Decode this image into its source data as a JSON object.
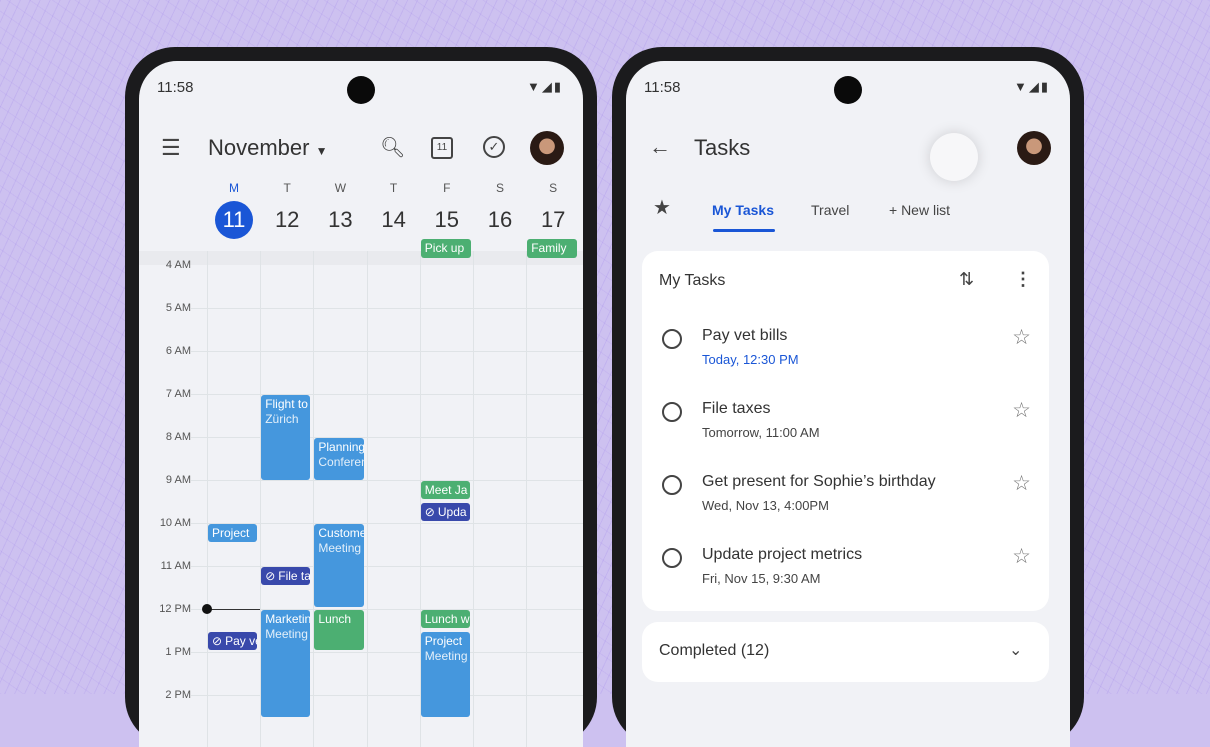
{
  "calendar": {
    "status_time": "11:58",
    "status_icons": "▼◢▮",
    "month": "November",
    "days": [
      {
        "dow": "M",
        "num": "11",
        "today": true
      },
      {
        "dow": "T",
        "num": "12"
      },
      {
        "dow": "W",
        "num": "13"
      },
      {
        "dow": "T",
        "num": "14"
      },
      {
        "dow": "F",
        "num": "15"
      },
      {
        "dow": "S",
        "num": "16"
      },
      {
        "dow": "S",
        "num": "17"
      }
    ],
    "hours": [
      "4 AM",
      "5 AM",
      "6 AM",
      "7 AM",
      "8 AM",
      "9 AM",
      "10 AM",
      "11 AM",
      "12 PM",
      "1 PM",
      "2 PM"
    ],
    "today_icon_label": "11",
    "current_time": 12.0,
    "all_day": [
      {
        "day": 4,
        "title": "Pick up"
      },
      {
        "day": 6,
        "title": "Family"
      }
    ],
    "events": [
      {
        "day": 1,
        "start": 7,
        "end": 9,
        "title": "Flight to",
        "subtitle": "Zürich",
        "kind": "event"
      },
      {
        "day": 2,
        "start": 8,
        "end": 9,
        "title": "Planning",
        "subtitle": "Conference",
        "kind": "event"
      },
      {
        "day": 4,
        "start": 9,
        "end": 9.45,
        "title": "Meet Ja",
        "kind": "green"
      },
      {
        "day": 4,
        "start": 9.5,
        "end": 9.95,
        "title": "Upda",
        "kind": "task"
      },
      {
        "day": 0,
        "start": 10,
        "end": 10.45,
        "title": "Project",
        "kind": "event"
      },
      {
        "day": 2,
        "start": 10,
        "end": 11.95,
        "title": "Customer",
        "subtitle": "Meeting",
        "kind": "event"
      },
      {
        "day": 1,
        "start": 11,
        "end": 11.45,
        "title": "File taxes",
        "kind": "task"
      },
      {
        "day": 1,
        "start": 12,
        "end": 14.5,
        "title": "Marketing",
        "subtitle": "Meeting",
        "kind": "event"
      },
      {
        "day": 2,
        "start": 12,
        "end": 12.95,
        "title": "Lunch",
        "kind": "green"
      },
      {
        "day": 4,
        "start": 12,
        "end": 12.45,
        "title": "Lunch w",
        "kind": "green"
      },
      {
        "day": 4,
        "start": 12.5,
        "end": 14.5,
        "title": "Project",
        "subtitle": "Meeting",
        "kind": "event"
      },
      {
        "day": 0,
        "start": 12.5,
        "end": 12.95,
        "title": "Pay vet bills",
        "kind": "task"
      }
    ],
    "colors": {
      "event": "#4597dd",
      "green": "#4caf72",
      "task": "#3949ab",
      "today": "#1a56d6"
    }
  },
  "tasks": {
    "status_time": "11:58",
    "status_icons": "▼◢▮",
    "title": "Tasks",
    "tabs": [
      {
        "label": "My Tasks",
        "active": true
      },
      {
        "label": "Travel"
      },
      {
        "label": "+ New list"
      }
    ],
    "list_title": "My Tasks",
    "items": [
      {
        "title": "Pay vet bills",
        "date": "Today, 12:30 PM",
        "highlight": true
      },
      {
        "title": "File taxes",
        "date": "Tomorrow, 11:00 AM"
      },
      {
        "title": "Get present for Sophie’s birthday",
        "date": "Wed, Nov 13, 4:00PM"
      },
      {
        "title": "Update project metrics",
        "date": "Fri, Nov 15, 9:30 AM"
      }
    ],
    "completed_label": "Completed (12)",
    "accent": "#1a56d6"
  }
}
